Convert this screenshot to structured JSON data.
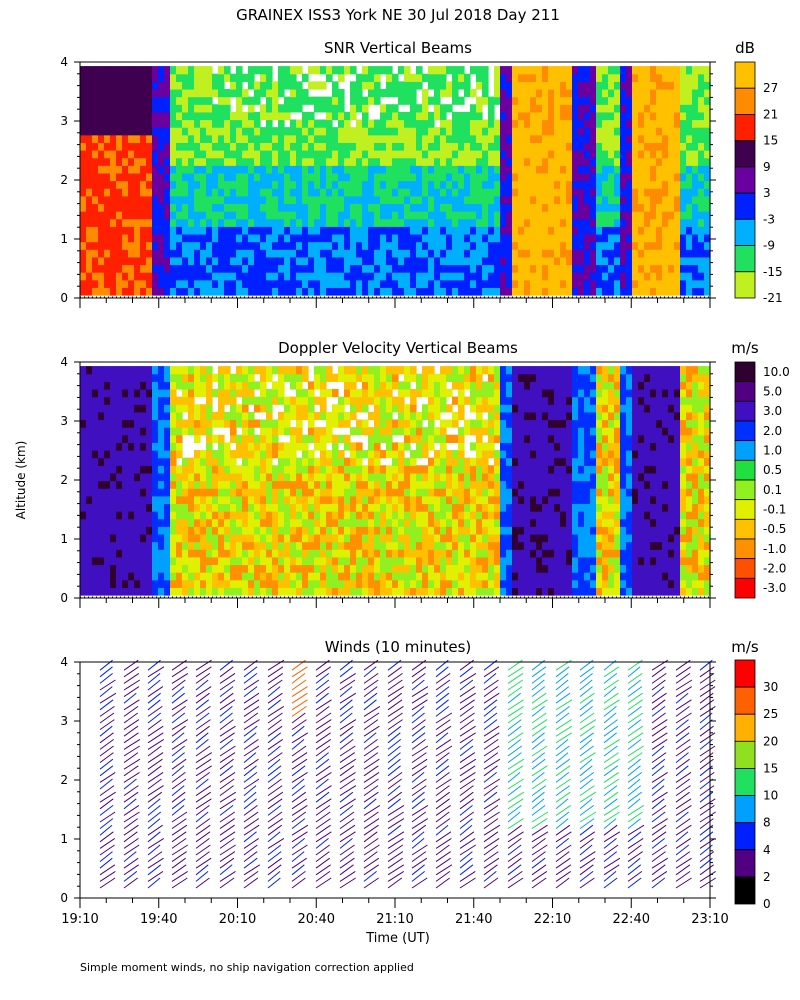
{
  "title": "GRAINEX ISS3 York NE  30 Jul 2018 Day 211",
  "ylabel": "Altitude (km)",
  "xlabel": "Time (UT)",
  "footnote": "Simple moment winds, no ship navigation correction applied",
  "chart_data": [
    {
      "type": "heatmap",
      "title": "SNR Vertical Beams",
      "unit": "dB",
      "x_ticks": [
        "19:10",
        "19:40",
        "20:10",
        "20:40",
        "21:10",
        "21:40",
        "22:10",
        "22:40",
        "23:10"
      ],
      "y_ticks": [
        "0",
        "1",
        "2",
        "3",
        "4"
      ],
      "ylim": [
        0,
        4
      ],
      "legend_labels": [
        "27",
        "21",
        "15",
        "9",
        "3",
        "-3",
        "-9",
        "-15",
        "-21"
      ],
      "colors": [
        "#ffc000",
        "#ff8c00",
        "#ff2000",
        "#400050",
        "#6a00a0",
        "#0020ff",
        "#00b0ff",
        "#20e060",
        "#c0f020"
      ]
    },
    {
      "type": "heatmap",
      "title": "Doppler Velocity Vertical Beams",
      "unit": "m/s",
      "x_ticks": [
        "19:10",
        "19:40",
        "20:10",
        "20:40",
        "21:10",
        "21:40",
        "22:10",
        "22:40",
        "23:10"
      ],
      "y_ticks": [
        "0",
        "1",
        "2",
        "3",
        "4"
      ],
      "ylim": [
        0,
        4
      ],
      "legend_labels": [
        "10.0",
        "5.0",
        "3.0",
        "2.0",
        "1.0",
        "0.5",
        "0.1",
        "-0.1",
        "-0.5",
        "-1.0",
        "-2.0",
        "-3.0"
      ],
      "colors": [
        "#300030",
        "#500080",
        "#4010c0",
        "#0030ff",
        "#00a0ff",
        "#20e040",
        "#90f020",
        "#e0f000",
        "#ffc000",
        "#ff9000",
        "#ff5000",
        "#ff0000"
      ]
    },
    {
      "type": "scatter",
      "title": "Winds (10 minutes)",
      "unit": "m/s",
      "x_ticks": [
        "19:10",
        "19:40",
        "20:10",
        "20:40",
        "21:10",
        "21:40",
        "22:10",
        "22:40",
        "23:10"
      ],
      "y_ticks": [
        "0",
        "1",
        "2",
        "3",
        "4"
      ],
      "ylim": [
        0,
        4
      ],
      "legend_labels": [
        "30",
        "25",
        "20",
        "15",
        "10",
        "8",
        "4",
        "2",
        "0"
      ],
      "colors": [
        "#ff0000",
        "#ff6000",
        "#ffb000",
        "#90e020",
        "#20e060",
        "#00a0ff",
        "#0020ff",
        "#500080",
        "#000000"
      ]
    }
  ]
}
